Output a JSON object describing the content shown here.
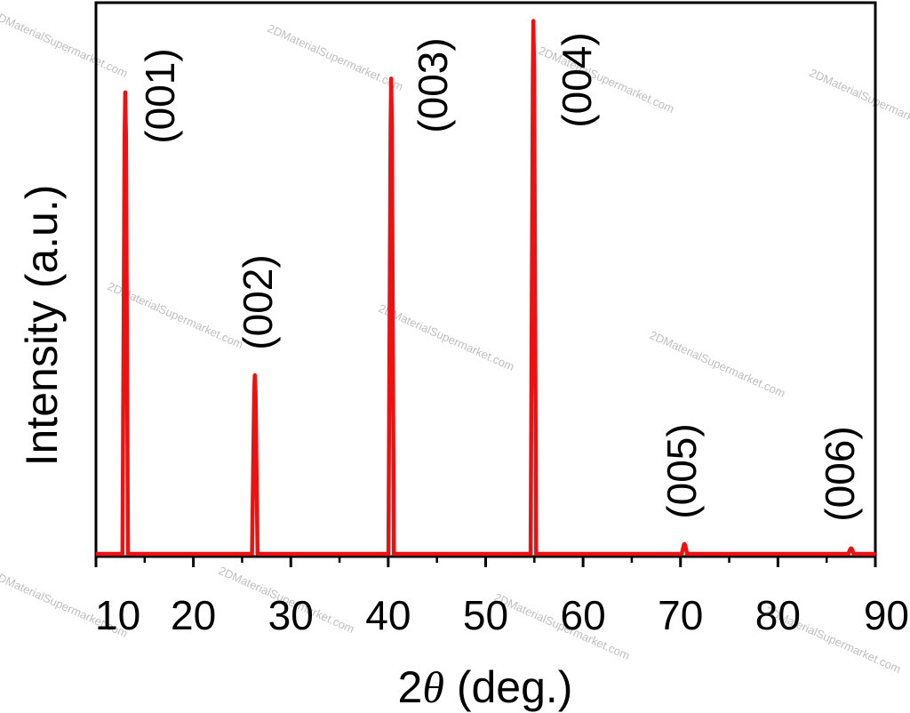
{
  "chart_data": {
    "type": "line",
    "xlabel_prefix": "2",
    "xlabel_symbol": "θ",
    "xlabel_suffix": " (deg.)",
    "ylabel": "Intensity (a.u.)",
    "xlim": [
      10,
      90
    ],
    "ylim": [
      0,
      100
    ],
    "xticks": [
      10,
      20,
      30,
      40,
      50,
      60,
      70,
      80,
      90
    ],
    "yticks_shown": false,
    "grid": false,
    "line_color": "#ee1111",
    "series": [
      {
        "peaks": [
          {
            "x": 13.0,
            "y": 84.0,
            "label": "(001)"
          },
          {
            "x": 26.3,
            "y": 32.5,
            "label": "(002)"
          },
          {
            "x": 40.3,
            "y": 86.5,
            "label": "(003)"
          },
          {
            "x": 54.9,
            "y": 97.0,
            "label": "(004)"
          },
          {
            "x": 70.4,
            "y": 1.8,
            "label": "(005)"
          },
          {
            "x": 87.5,
            "y": 1.0,
            "label": "(006)"
          }
        ]
      }
    ],
    "watermark": "2DMaterialSupermarket.com"
  }
}
